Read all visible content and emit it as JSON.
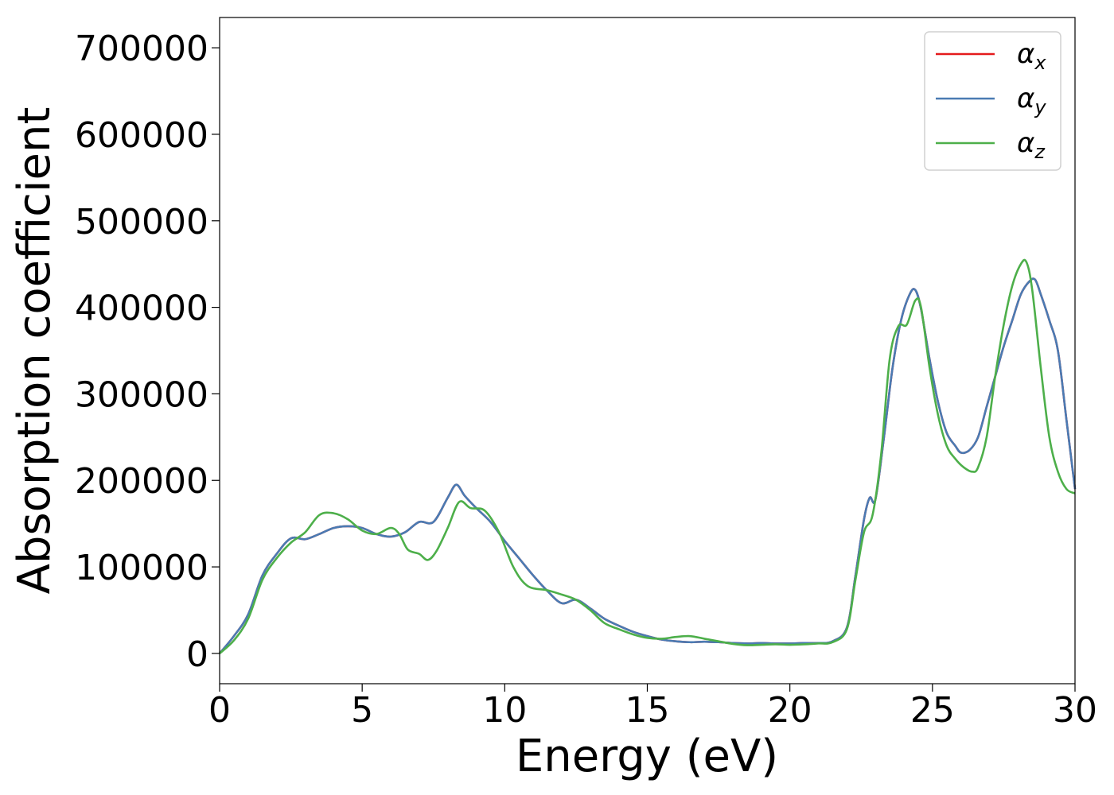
{
  "chart_data": {
    "type": "line",
    "xlabel": "Energy (eV)",
    "ylabel": "Absorption coefficient",
    "xlim": [
      0,
      30
    ],
    "ylim": [
      -35000,
      735000
    ],
    "xticks": [
      0,
      5,
      10,
      15,
      20,
      25,
      30
    ],
    "yticks": [
      0,
      100000,
      200000,
      300000,
      400000,
      500000,
      600000,
      700000
    ],
    "grid": false,
    "legend_position": "top-right",
    "series": [
      {
        "name": "α_x",
        "legend_base": "α",
        "legend_sub": "x",
        "color": "#e41a1c",
        "x": [
          0,
          0.5,
          1,
          1.5,
          2,
          2.5,
          3,
          3.5,
          4,
          4.5,
          5,
          5.5,
          6,
          6.5,
          7,
          7.5,
          8,
          8.3,
          8.6,
          9,
          9.5,
          10,
          10.5,
          11,
          11.5,
          12,
          12.5,
          13,
          13.5,
          14,
          14.5,
          15,
          15.5,
          16,
          16.5,
          17,
          17.5,
          18,
          18.5,
          19,
          19.5,
          20,
          20.5,
          21,
          21.5,
          22,
          22.3,
          22.6,
          22.8,
          23,
          23.3,
          23.6,
          23.9,
          24.2,
          24.4,
          24.6,
          24.9,
          25.2,
          25.5,
          25.8,
          26,
          26.3,
          26.6,
          26.9,
          27.2,
          27.5,
          27.8,
          28.1,
          28.4,
          28.6,
          28.8,
          29.1,
          29.4,
          29.7,
          30
        ],
        "y": [
          0,
          20000,
          45000,
          90000,
          115000,
          133000,
          132000,
          138000,
          145000,
          147000,
          145000,
          138000,
          135000,
          140000,
          152000,
          152000,
          180000,
          195000,
          182000,
          168000,
          152000,
          130000,
          110000,
          90000,
          72000,
          58000,
          62000,
          52000,
          40000,
          32000,
          25000,
          20000,
          16000,
          14000,
          13000,
          13500,
          13000,
          12000,
          11500,
          12000,
          11500,
          11500,
          12000,
          12000,
          14000,
          30000,
          90000,
          155000,
          180000,
          178000,
          250000,
          330000,
          385000,
          415000,
          420000,
          398000,
          340000,
          290000,
          255000,
          240000,
          232000,
          235000,
          250000,
          285000,
          320000,
          355000,
          385000,
          415000,
          430000,
          432000,
          415000,
          385000,
          350000,
          270000,
          190000
        ]
      },
      {
        "name": "α_y",
        "legend_base": "α",
        "legend_sub": "y",
        "color": "#4a7bb3",
        "x": [
          0,
          0.5,
          1,
          1.5,
          2,
          2.5,
          3,
          3.5,
          4,
          4.5,
          5,
          5.5,
          6,
          6.5,
          7,
          7.5,
          8,
          8.3,
          8.6,
          9,
          9.5,
          10,
          10.5,
          11,
          11.5,
          12,
          12.5,
          13,
          13.5,
          14,
          14.5,
          15,
          15.5,
          16,
          16.5,
          17,
          17.5,
          18,
          18.5,
          19,
          19.5,
          20,
          20.5,
          21,
          21.5,
          22,
          22.3,
          22.6,
          22.8,
          23,
          23.3,
          23.6,
          23.9,
          24.2,
          24.4,
          24.6,
          24.9,
          25.2,
          25.5,
          25.8,
          26,
          26.3,
          26.6,
          26.9,
          27.2,
          27.5,
          27.8,
          28.1,
          28.4,
          28.6,
          28.8,
          29.1,
          29.4,
          29.7,
          30
        ],
        "y": [
          0,
          20000,
          45000,
          90000,
          115000,
          133000,
          132000,
          138000,
          145000,
          147000,
          145000,
          138000,
          135000,
          140000,
          152000,
          152000,
          180000,
          195000,
          182000,
          168000,
          152000,
          130000,
          110000,
          90000,
          72000,
          58000,
          62000,
          52000,
          40000,
          32000,
          25000,
          20000,
          16000,
          14000,
          13000,
          13500,
          13000,
          12000,
          11500,
          12000,
          11500,
          11500,
          12000,
          12000,
          14000,
          30000,
          90000,
          155000,
          180000,
          178000,
          250000,
          330000,
          385000,
          415000,
          420000,
          398000,
          340000,
          290000,
          255000,
          240000,
          232000,
          235000,
          250000,
          285000,
          320000,
          355000,
          385000,
          415000,
          430000,
          432000,
          415000,
          385000,
          350000,
          270000,
          190000
        ]
      },
      {
        "name": "α_z",
        "legend_base": "α",
        "legend_sub": "z",
        "color": "#4daf4a",
        "x": [
          0,
          0.5,
          1,
          1.5,
          2,
          2.5,
          3,
          3.5,
          4,
          4.5,
          5,
          5.5,
          6,
          6.3,
          6.6,
          7,
          7.3,
          7.6,
          8,
          8.4,
          8.8,
          9.3,
          9.8,
          10.3,
          10.8,
          11.5,
          12,
          12.5,
          13,
          13.5,
          14,
          14.5,
          15,
          15.5,
          16,
          16.5,
          17,
          17.5,
          18,
          18.5,
          19,
          19.5,
          20,
          20.5,
          21,
          21.5,
          22,
          22.3,
          22.6,
          22.9,
          23.2,
          23.5,
          23.8,
          24.1,
          24.4,
          24.6,
          24.9,
          25.2,
          25.5,
          25.8,
          26.1,
          26.4,
          26.6,
          26.9,
          27.2,
          27.5,
          27.8,
          28.1,
          28.3,
          28.5,
          28.8,
          29.1,
          29.4,
          29.7,
          30
        ],
        "y": [
          0,
          15000,
          40000,
          85000,
          110000,
          128000,
          140000,
          160000,
          162000,
          155000,
          142000,
          138000,
          145000,
          138000,
          120000,
          115000,
          108000,
          118000,
          145000,
          175000,
          168000,
          165000,
          140000,
          100000,
          78000,
          73000,
          68000,
          62000,
          50000,
          35000,
          28000,
          22000,
          18000,
          17000,
          19000,
          20000,
          17000,
          14000,
          11000,
          9500,
          10000,
          10500,
          10000,
          10500,
          11500,
          13000,
          28000,
          85000,
          140000,
          160000,
          230000,
          340000,
          378000,
          380000,
          408000,
          400000,
          330000,
          275000,
          240000,
          225000,
          215000,
          210000,
          215000,
          250000,
          320000,
          380000,
          425000,
          450000,
          452000,
          420000,
          330000,
          250000,
          210000,
          190000,
          185000
        ]
      }
    ]
  }
}
